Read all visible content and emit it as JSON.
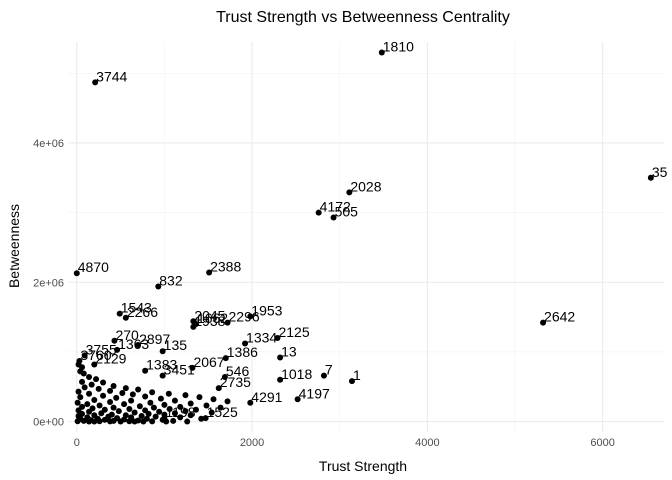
{
  "chart_data": {
    "type": "scatter",
    "title": "Trust Strength vs Betweenness Centrality",
    "xlabel": "Trust Strength",
    "ylabel": "Betweenness",
    "xlim": [
      -100,
      6700
    ],
    "ylim": [
      -150000,
      5450000
    ],
    "x_ticks": [
      0,
      2000,
      4000,
      6000
    ],
    "x_tick_labels": [
      "0",
      "2000",
      "4000",
      "6000"
    ],
    "y_ticks": [
      0,
      2000000,
      4000000
    ],
    "y_tick_labels": [
      "0e+00",
      "2e+06",
      "4e+06"
    ],
    "grid": true,
    "point_color": "#000000",
    "labeled_points": [
      {
        "label": "1810",
        "x": 3480,
        "y": 5300000
      },
      {
        "label": "3744",
        "x": 210,
        "y": 4870000
      },
      {
        "label": "35",
        "x": 6550,
        "y": 3500000
      },
      {
        "label": "2028",
        "x": 3110,
        "y": 3290000
      },
      {
        "label": "4172",
        "x": 2760,
        "y": 3000000
      },
      {
        "label": "505",
        "x": 2930,
        "y": 2930000
      },
      {
        "label": "4870",
        "x": 0,
        "y": 2130000
      },
      {
        "label": "2388",
        "x": 1510,
        "y": 2140000
      },
      {
        "label": "832",
        "x": 930,
        "y": 1940000
      },
      {
        "label": "2642",
        "x": 5320,
        "y": 1420000
      },
      {
        "label": "1543",
        "x": 490,
        "y": 1550000
      },
      {
        "label": "2266",
        "x": 560,
        "y": 1490000
      },
      {
        "label": "2045",
        "x": 1330,
        "y": 1440000
      },
      {
        "label": "1953",
        "x": 1980,
        "y": 1510000
      },
      {
        "label": "1662",
        "x": 1360,
        "y": 1400000
      },
      {
        "label": "1938",
        "x": 1330,
        "y": 1360000
      },
      {
        "label": "2296",
        "x": 1720,
        "y": 1420000
      },
      {
        "label": "2125",
        "x": 2290,
        "y": 1200000
      },
      {
        "label": "1334",
        "x": 1920,
        "y": 1120000
      },
      {
        "label": "270",
        "x": 430,
        "y": 1160000
      },
      {
        "label": "2897",
        "x": 700,
        "y": 1100000
      },
      {
        "label": "1363",
        "x": 460,
        "y": 1030000
      },
      {
        "label": "135",
        "x": 980,
        "y": 1010000
      },
      {
        "label": "3755",
        "x": 90,
        "y": 950000
      },
      {
        "label": "1386",
        "x": 1700,
        "y": 910000
      },
      {
        "label": "13",
        "x": 2320,
        "y": 920000
      },
      {
        "label": "3760",
        "x": 30,
        "y": 870000
      },
      {
        "label": "2129",
        "x": 200,
        "y": 820000
      },
      {
        "label": "2067",
        "x": 1320,
        "y": 770000
      },
      {
        "label": "1383",
        "x": 780,
        "y": 730000
      },
      {
        "label": "7",
        "x": 2820,
        "y": 660000
      },
      {
        "label": "546",
        "x": 1690,
        "y": 640000
      },
      {
        "label": "3451",
        "x": 980,
        "y": 660000
      },
      {
        "label": "1018",
        "x": 2320,
        "y": 600000
      },
      {
        "label": "1",
        "x": 3140,
        "y": 580000
      },
      {
        "label": "4197",
        "x": 2520,
        "y": 320000
      },
      {
        "label": "4291",
        "x": 1980,
        "y": 270000
      },
      {
        "label": "2735",
        "x": 1620,
        "y": 480000
      },
      {
        "label": "1198",
        "x": 1000,
        "y": 50000
      },
      {
        "label": "1525",
        "x": 1470,
        "y": 50000
      }
    ],
    "unlabeled_points": [
      {
        "x": 20,
        "y": 820000
      },
      {
        "x": 60,
        "y": 780000
      },
      {
        "x": 40,
        "y": 720000
      },
      {
        "x": 80,
        "y": 690000
      },
      {
        "x": 140,
        "y": 640000
      },
      {
        "x": 220,
        "y": 610000
      },
      {
        "x": 60,
        "y": 570000
      },
      {
        "x": 300,
        "y": 560000
      },
      {
        "x": 170,
        "y": 530000
      },
      {
        "x": 420,
        "y": 510000
      },
      {
        "x": 90,
        "y": 490000
      },
      {
        "x": 560,
        "y": 480000
      },
      {
        "x": 250,
        "y": 470000
      },
      {
        "x": 700,
        "y": 460000
      },
      {
        "x": 380,
        "y": 440000
      },
      {
        "x": 20,
        "y": 430000
      },
      {
        "x": 860,
        "y": 420000
      },
      {
        "x": 520,
        "y": 410000
      },
      {
        "x": 140,
        "y": 400000
      },
      {
        "x": 1050,
        "y": 400000
      },
      {
        "x": 640,
        "y": 390000
      },
      {
        "x": 1240,
        "y": 380000
      },
      {
        "x": 300,
        "y": 370000
      },
      {
        "x": 780,
        "y": 360000
      },
      {
        "x": 1400,
        "y": 350000
      },
      {
        "x": 40,
        "y": 350000
      },
      {
        "x": 450,
        "y": 340000
      },
      {
        "x": 960,
        "y": 330000
      },
      {
        "x": 1560,
        "y": 320000
      },
      {
        "x": 200,
        "y": 310000
      },
      {
        "x": 620,
        "y": 300000
      },
      {
        "x": 1120,
        "y": 300000
      },
      {
        "x": 1720,
        "y": 290000
      },
      {
        "x": 380,
        "y": 280000
      },
      {
        "x": 10,
        "y": 270000
      },
      {
        "x": 840,
        "y": 270000
      },
      {
        "x": 1300,
        "y": 260000
      },
      {
        "x": 120,
        "y": 250000
      },
      {
        "x": 540,
        "y": 250000
      },
      {
        "x": 1000,
        "y": 240000
      },
      {
        "x": 1480,
        "y": 230000
      },
      {
        "x": 260,
        "y": 230000
      },
      {
        "x": 720,
        "y": 220000
      },
      {
        "x": 1180,
        "y": 210000
      },
      {
        "x": 60,
        "y": 210000
      },
      {
        "x": 420,
        "y": 200000
      },
      {
        "x": 880,
        "y": 200000
      },
      {
        "x": 1640,
        "y": 200000
      },
      {
        "x": 180,
        "y": 190000
      },
      {
        "x": 600,
        "y": 180000
      },
      {
        "x": 1060,
        "y": 180000
      },
      {
        "x": 1360,
        "y": 170000
      },
      {
        "x": 320,
        "y": 170000
      },
      {
        "x": 780,
        "y": 160000
      },
      {
        "x": 20,
        "y": 160000
      },
      {
        "x": 1240,
        "y": 150000
      },
      {
        "x": 480,
        "y": 150000
      },
      {
        "x": 940,
        "y": 140000
      },
      {
        "x": 140,
        "y": 140000
      },
      {
        "x": 660,
        "y": 130000
      },
      {
        "x": 1540,
        "y": 130000
      },
      {
        "x": 280,
        "y": 120000
      },
      {
        "x": 1120,
        "y": 120000
      },
      {
        "x": 820,
        "y": 110000
      },
      {
        "x": 60,
        "y": 110000
      },
      {
        "x": 400,
        "y": 100000
      },
      {
        "x": 1000,
        "y": 100000
      },
      {
        "x": 560,
        "y": 90000
      },
      {
        "x": 200,
        "y": 90000
      },
      {
        "x": 1300,
        "y": 90000
      },
      {
        "x": 740,
        "y": 80000
      },
      {
        "x": 20,
        "y": 80000
      },
      {
        "x": 360,
        "y": 70000
      },
      {
        "x": 900,
        "y": 70000
      },
      {
        "x": 120,
        "y": 60000
      },
      {
        "x": 620,
        "y": 60000
      },
      {
        "x": 1180,
        "y": 60000
      },
      {
        "x": 460,
        "y": 50000
      },
      {
        "x": 240,
        "y": 40000
      },
      {
        "x": 800,
        "y": 40000
      },
      {
        "x": 40,
        "y": 40000
      },
      {
        "x": 1420,
        "y": 40000
      },
      {
        "x": 540,
        "y": 30000
      },
      {
        "x": 320,
        "y": 25000
      },
      {
        "x": 980,
        "y": 25000
      },
      {
        "x": 160,
        "y": 20000
      },
      {
        "x": 700,
        "y": 15000
      },
      {
        "x": 80,
        "y": 10000
      },
      {
        "x": 420,
        "y": 10000
      },
      {
        "x": 1100,
        "y": 10000
      },
      {
        "x": 260,
        "y": 5000
      },
      {
        "x": 600,
        "y": 5000
      },
      {
        "x": 10,
        "y": 5000
      },
      {
        "x": 860,
        "y": 3000
      },
      {
        "x": 380,
        "y": 2000
      },
      {
        "x": 140,
        "y": 1000
      },
      {
        "x": 500,
        "y": 1000
      },
      {
        "x": 760,
        "y": 1000
      },
      {
        "x": 1020,
        "y": 1000
      },
      {
        "x": 1260,
        "y": 1000
      },
      {
        "x": 200,
        "y": 500
      },
      {
        "x": 660,
        "y": 500
      }
    ]
  }
}
